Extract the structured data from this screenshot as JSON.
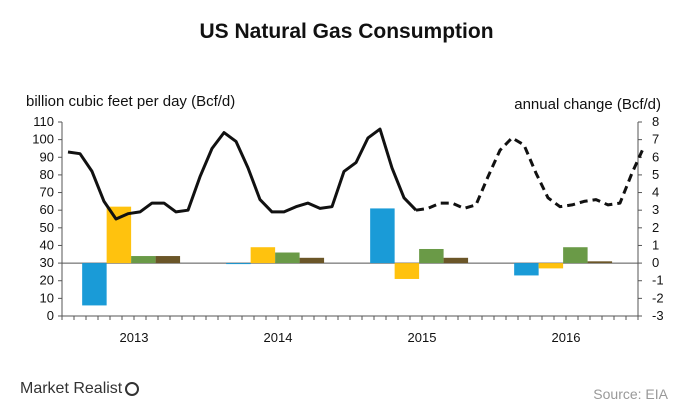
{
  "chart_data": {
    "type": "bar+line",
    "title": "US Natural Gas Consumption",
    "ylabel_left": "billion cubic feet per day (Bcf/d)",
    "ylabel_right": "annual change (Bcf/d)",
    "ylim_left": [
      0,
      110
    ],
    "ylim_right": [
      -3,
      8
    ],
    "yticks_left": [
      "0",
      "10",
      "20",
      "30",
      "40",
      "50",
      "60",
      "70",
      "80",
      "90",
      "100",
      "110"
    ],
    "yticks_right": [
      "-3",
      "-2",
      "-1",
      "0",
      "1",
      "2",
      "3",
      "4",
      "5",
      "6",
      "7",
      "8"
    ],
    "categories": [
      "2013",
      "2014",
      "2015",
      "2016"
    ],
    "bar_colors": [
      "#1a9bd7",
      "#ffc20e",
      "#6a9a47",
      "#6b5628"
    ],
    "annual_change": [
      [
        -2.4,
        3.2,
        0.4,
        0.4
      ],
      [
        0.0,
        0.9,
        0.6,
        0.3
      ],
      [
        3.1,
        -0.9,
        0.8,
        0.3
      ],
      [
        -0.7,
        -0.3,
        0.9,
        0.1
      ]
    ],
    "consumption_actual": [
      93,
      92,
      82,
      65,
      55,
      58,
      59,
      64,
      64,
      59,
      60,
      79,
      95,
      104,
      99,
      84,
      66,
      59,
      59,
      62,
      64,
      61,
      62,
      82,
      87,
      101,
      106,
      84,
      67,
      60
    ],
    "consumption_forecast": [
      60,
      61,
      64,
      64,
      61,
      63,
      79,
      94,
      101,
      97,
      81,
      67,
      62,
      63,
      65,
      66,
      63,
      64,
      81,
      96
    ]
  },
  "footer": {
    "logo_text": "Market Realist",
    "source": "Source:  EIA"
  }
}
